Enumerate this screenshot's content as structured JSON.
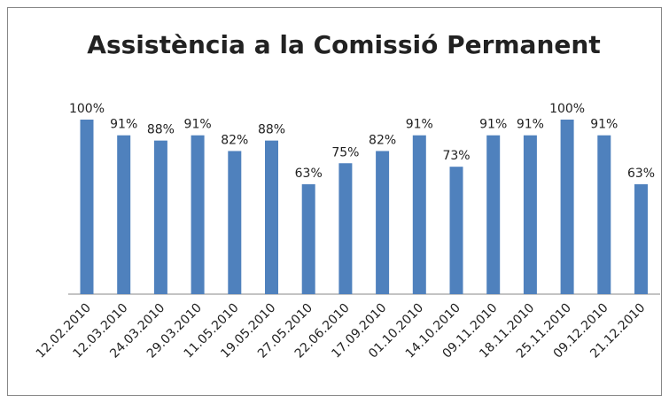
{
  "chart_data": {
    "type": "bar",
    "title": "Assistència a la Comissió Permanent",
    "categories": [
      "12.02.2010",
      "12.03.2010",
      "24.03.2010",
      "29.03.2010",
      "11.05.2010",
      "19.05.2010",
      "27.05.2010",
      "22.06.2010",
      "17.09.2010",
      "01.10.2010",
      "14.10.2010",
      "09.11.2010",
      "18.11.2010",
      "25.11.2010",
      "09.12.2010",
      "21.12.2010"
    ],
    "values": [
      100,
      91,
      88,
      91,
      82,
      88,
      63,
      75,
      82,
      91,
      73,
      91,
      91,
      100,
      91,
      63
    ],
    "value_labels": [
      "100%",
      "91%",
      "88%",
      "91%",
      "82%",
      "88%",
      "63%",
      "75%",
      "82%",
      "91%",
      "73%",
      "91%",
      "91%",
      "100%",
      "91%",
      "63%"
    ],
    "color": "#4f81bd"
  }
}
